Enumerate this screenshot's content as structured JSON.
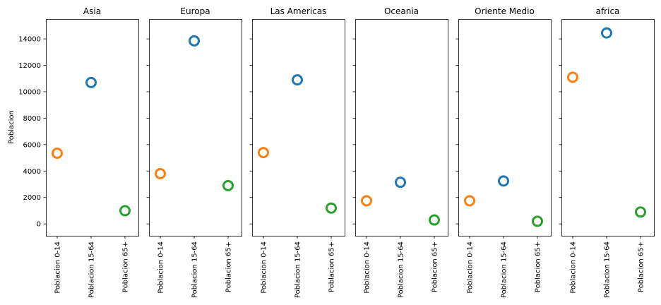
{
  "chart_data": {
    "type": "scatter",
    "ylabel": "Poblacion",
    "ylim": [
      -900,
      15500
    ],
    "yticks": [
      0,
      2000,
      4000,
      6000,
      8000,
      10000,
      12000,
      14000
    ],
    "categories": [
      "Poblacion 0-14",
      "Poblacion 15-64",
      "Poblacion 65+"
    ],
    "colors": {
      "Poblacion 0-14": "#ff7f0e",
      "Poblacion 15-64": "#1f77b4",
      "Poblacion 65+": "#2ca02c"
    },
    "panels": [
      {
        "title": "Asia",
        "values": [
          5350,
          10700,
          1000
        ]
      },
      {
        "title": "Europa",
        "values": [
          3800,
          13850,
          2900
        ]
      },
      {
        "title": "Las Americas",
        "values": [
          5400,
          10900,
          1200
        ]
      },
      {
        "title": "Oceania",
        "values": [
          1750,
          3150,
          300
        ]
      },
      {
        "title": "Oriente Medio",
        "values": [
          1750,
          3250,
          200
        ]
      },
      {
        "title": "africa",
        "values": [
          11100,
          14450,
          900
        ]
      }
    ]
  }
}
